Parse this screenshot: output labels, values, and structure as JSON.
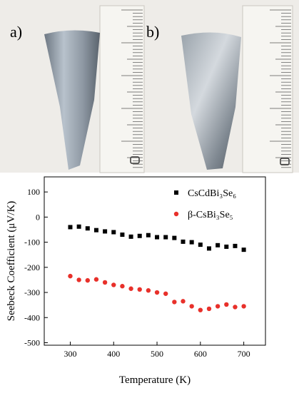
{
  "photos": {
    "labels": [
      "a)",
      "b)"
    ]
  },
  "chart_data": {
    "type": "scatter",
    "xlabel": "Temperature (K)",
    "ylabel": "Seebeck Coefficient (μV/K)",
    "x": [
      300,
      320,
      340,
      360,
      380,
      400,
      420,
      440,
      460,
      480,
      500,
      520,
      540,
      560,
      580,
      600,
      620,
      640,
      660,
      680,
      700
    ],
    "series": [
      {
        "name": "CsCdBi₃Se₆",
        "color": "#000000",
        "marker": "square",
        "values": [
          -40,
          -38,
          -45,
          -52,
          -57,
          -60,
          -70,
          -78,
          -75,
          -72,
          -80,
          -80,
          -83,
          -98,
          -100,
          -110,
          -125,
          -112,
          -118,
          -115,
          -130
        ]
      },
      {
        "name": "β-CsBi₃Se₅",
        "color": "#e8302a",
        "marker": "circle",
        "values": [
          -235,
          -250,
          -252,
          -248,
          -260,
          -270,
          -275,
          -285,
          -288,
          -292,
          -300,
          -305,
          -338,
          -335,
          -355,
          -370,
          -365,
          -355,
          -348,
          -358,
          -355
        ]
      }
    ],
    "xlim": [
      240,
      750
    ],
    "xticks": [
      300,
      400,
      500,
      600,
      700
    ],
    "ylim": [
      -510,
      160
    ],
    "yticks": [
      -500,
      -400,
      -300,
      -200,
      -100,
      0,
      100
    ],
    "legend": "upper right"
  }
}
